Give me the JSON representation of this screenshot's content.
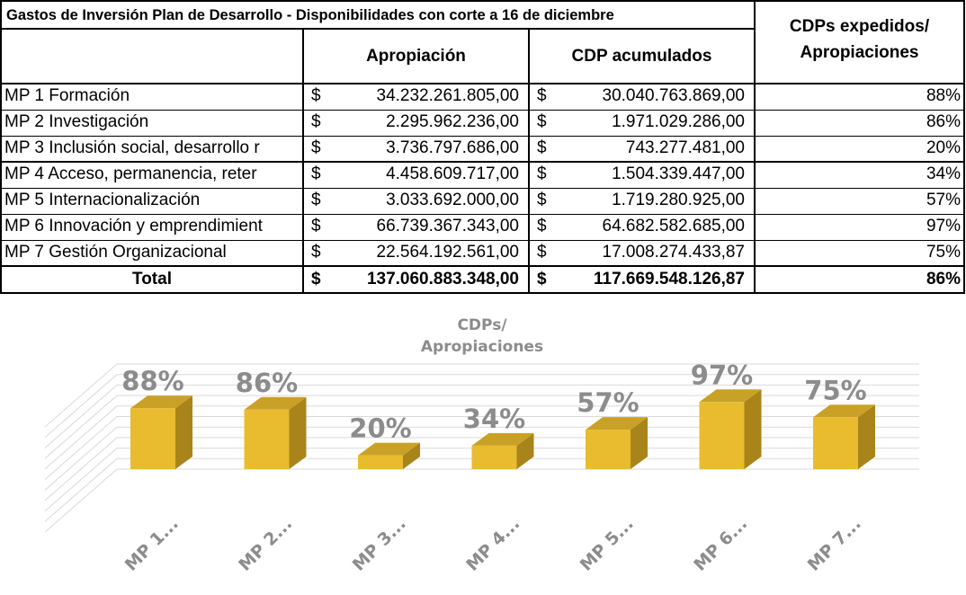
{
  "table": {
    "title": "Gastos de Inversión Plan de Desarrollo - Disponibilidades con corte a 16 de diciembre",
    "col_appropriation": "Apropiación",
    "col_cdp": "CDP acumulados",
    "col_ratio_line1": "CDPs expedidos/",
    "col_ratio_line2": "Apropiaciones",
    "currency": "$",
    "rows": [
      {
        "name": "MP 1 Formación",
        "appropriation": "34.232.261.805,00",
        "cdp": "30.040.763.869,00",
        "ratio": "88%"
      },
      {
        "name": "MP 2 Investigación",
        "appropriation": "2.295.962.236,00",
        "cdp": "1.971.029.286,00",
        "ratio": "86%"
      },
      {
        "name": "MP 3 Inclusión social, desarrollo r",
        "appropriation": "3.736.797.686,00",
        "cdp": "743.277.481,00",
        "ratio": "20%"
      },
      {
        "name": "MP 4 Acceso, permanencia, reter",
        "appropriation": "4.458.609.717,00",
        "cdp": "1.504.339.447,00",
        "ratio": "34%"
      },
      {
        "name": "MP 5 Internacionalización",
        "appropriation": "3.033.692.000,00",
        "cdp": "1.719.280.925,00",
        "ratio": "57%"
      },
      {
        "name": "MP 6 Innovación y emprendimient",
        "appropriation": "66.739.367.343,00",
        "cdp": "64.682.582.685,00",
        "ratio": "97%"
      },
      {
        "name": "MP 7 Gestión Organizacional",
        "appropriation": "22.564.192.561,00",
        "cdp": "17.008.274.433,87",
        "ratio": "75%"
      }
    ],
    "total": {
      "name": "Total",
      "appropriation": "137.060.883.348,00",
      "cdp": "117.669.548.126,87",
      "ratio": "86%"
    }
  },
  "chart_data": {
    "type": "bar",
    "title_line1": "CDPs/",
    "title_line2": "Apropiaciones",
    "categories": [
      "MP 1...",
      "MP 2...",
      "MP 3...",
      "MP 4...",
      "MP 5...",
      "MP 6...",
      "MP 7..."
    ],
    "values": [
      88,
      86,
      20,
      34,
      57,
      97,
      75
    ],
    "value_labels": [
      "88%",
      "86%",
      "20%",
      "34%",
      "57%",
      "97%",
      "75%"
    ],
    "ylim": [
      0,
      100
    ],
    "grid": true,
    "colors": {
      "front": "#E8BC2E",
      "side": "#A8841A",
      "top": "#C9A126",
      "label": "#8C8C8C",
      "grid": "#D9D9D9"
    }
  }
}
